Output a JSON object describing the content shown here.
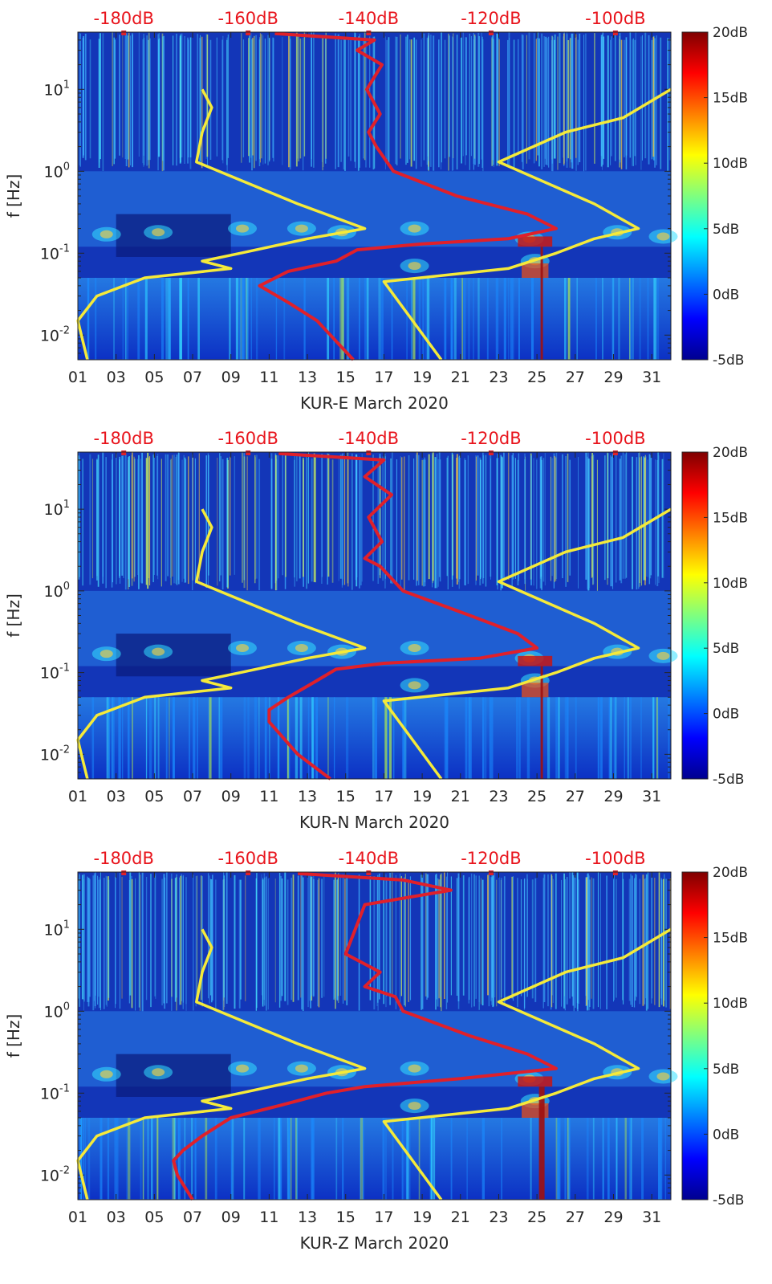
{
  "figure": {
    "colormap_stops": [
      "#00008f",
      "#0000ff",
      "#007fff",
      "#00ffff",
      "#7fff7f",
      "#ffff00",
      "#ff7f00",
      "#ff0000",
      "#7f0000"
    ],
    "background_color": "#1336b8",
    "psd_line_color": "#e0202a",
    "noise_model_color": "#f5ea3a"
  },
  "chart_data": [
    {
      "type": "heatmap",
      "panel": "KUR-E",
      "xlabel": "KUR-E March 2020",
      "ylabel": "f [Hz]",
      "x_tick_labels": [
        "01",
        "03",
        "05",
        "07",
        "09",
        "11",
        "13",
        "15",
        "17",
        "19",
        "21",
        "23",
        "25",
        "27",
        "29",
        "31"
      ],
      "xlim": [
        1,
        32
      ],
      "y_scale": "log",
      "ylim": [
        0.005,
        50
      ],
      "y_tick_labels": [
        {
          "base": "10",
          "exp": "1",
          "value": 10
        },
        {
          "base": "10",
          "exp": "0",
          "value": 1
        },
        {
          "base": "10",
          "exp": "-1",
          "value": 0.1
        },
        {
          "base": "10",
          "exp": "-2",
          "value": 0.01
        }
      ],
      "top_axis_labels": [
        "-180dB",
        "-160dB",
        "-140dB",
        "-120dB",
        "-100dB"
      ],
      "top_axis_positions_day": [
        3.4,
        9.9,
        16.2,
        22.6,
        29.1
      ],
      "colorbar": {
        "range": [
          -5,
          20
        ],
        "tick_labels": [
          "20dB",
          "15dB",
          "10dB",
          "5dB",
          "0dB",
          "-5dB"
        ],
        "tick_values": [
          20,
          15,
          10,
          5,
          0,
          -5
        ]
      },
      "psd_line": {
        "name": "Power spectral density (red)",
        "points": [
          [
            48,
            11.3
          ],
          [
            40,
            16.5
          ],
          [
            30,
            15.6
          ],
          [
            20,
            16.9
          ],
          [
            10,
            16.1
          ],
          [
            5,
            16.8
          ],
          [
            3,
            16.2
          ],
          [
            2,
            16.6
          ],
          [
            1,
            17.5
          ],
          [
            0.5,
            20.8
          ],
          [
            0.3,
            24.5
          ],
          [
            0.2,
            26.0
          ],
          [
            0.15,
            23.5
          ],
          [
            0.13,
            19.0
          ],
          [
            0.11,
            15.6
          ],
          [
            0.08,
            14.5
          ],
          [
            0.06,
            12.0
          ],
          [
            0.04,
            10.5
          ],
          [
            0.025,
            12.0
          ],
          [
            0.015,
            13.5
          ],
          [
            0.005,
            15.4
          ]
        ]
      },
      "noise_models": [
        {
          "name": "Low noise model (yellow)",
          "points": [
            [
              10,
              7.5
            ],
            [
              6,
              8.0
            ],
            [
              3,
              7.5
            ],
            [
              1.3,
              7.2
            ],
            [
              0.4,
              12.5
            ],
            [
              0.2,
              16.0
            ],
            [
              0.15,
              13.0
            ],
            [
              0.1,
              9.5
            ],
            [
              0.08,
              7.5
            ],
            [
              0.065,
              9.0
            ],
            [
              0.05,
              4.5
            ],
            [
              0.03,
              2.0
            ],
            [
              0.015,
              1.0
            ],
            [
              0.005,
              1.5
            ]
          ]
        },
        {
          "name": "High noise model (yellow)",
          "points": [
            [
              10,
              32.0
            ],
            [
              4.5,
              29.5
            ],
            [
              3,
              26.5
            ],
            [
              1.3,
              23.0
            ],
            [
              0.4,
              28.0
            ],
            [
              0.2,
              30.3
            ],
            [
              0.15,
              28.0
            ],
            [
              0.1,
              26.0
            ],
            [
              0.065,
              23.5
            ],
            [
              0.045,
              17.0
            ],
            [
              0.005,
              20.0
            ]
          ]
        }
      ]
    },
    {
      "type": "heatmap",
      "panel": "KUR-N",
      "xlabel": "KUR-N March 2020",
      "ylabel": "f [Hz]",
      "x_tick_labels": [
        "01",
        "03",
        "05",
        "07",
        "09",
        "11",
        "13",
        "15",
        "17",
        "19",
        "21",
        "23",
        "25",
        "27",
        "29",
        "31"
      ],
      "xlim": [
        1,
        32
      ],
      "y_scale": "log",
      "ylim": [
        0.005,
        50
      ],
      "y_tick_labels": [
        {
          "base": "10",
          "exp": "1",
          "value": 10
        },
        {
          "base": "10",
          "exp": "0",
          "value": 1
        },
        {
          "base": "10",
          "exp": "-1",
          "value": 0.1
        },
        {
          "base": "10",
          "exp": "-2",
          "value": 0.01
        }
      ],
      "top_axis_labels": [
        "-180dB",
        "-160dB",
        "-140dB",
        "-120dB",
        "-100dB"
      ],
      "top_axis_positions_day": [
        3.4,
        9.9,
        16.2,
        22.6,
        29.1
      ],
      "colorbar": {
        "range": [
          -5,
          20
        ],
        "tick_labels": [
          "20dB",
          "15dB",
          "10dB",
          "5dB",
          "0dB",
          "-5dB"
        ],
        "tick_values": [
          20,
          15,
          10,
          5,
          0,
          -5
        ]
      },
      "psd_line": {
        "name": "Power spectral density (red)",
        "points": [
          [
            48,
            11.5
          ],
          [
            40,
            17.0
          ],
          [
            25,
            16.0
          ],
          [
            15,
            17.4
          ],
          [
            8,
            16.2
          ],
          [
            4,
            16.9
          ],
          [
            2.5,
            16.0
          ],
          [
            2,
            16.8
          ],
          [
            1,
            18.0
          ],
          [
            0.5,
            21.5
          ],
          [
            0.3,
            24.0
          ],
          [
            0.2,
            25.0
          ],
          [
            0.15,
            22.0
          ],
          [
            0.13,
            17.0
          ],
          [
            0.11,
            14.5
          ],
          [
            0.08,
            13.5
          ],
          [
            0.05,
            12.0
          ],
          [
            0.035,
            11.0
          ],
          [
            0.025,
            11.0
          ],
          [
            0.01,
            12.5
          ],
          [
            0.005,
            14.2
          ]
        ]
      },
      "noise_models": [
        {
          "name": "Low noise model (yellow)",
          "points": [
            [
              10,
              7.5
            ],
            [
              6,
              8.0
            ],
            [
              3,
              7.5
            ],
            [
              1.3,
              7.2
            ],
            [
              0.4,
              12.5
            ],
            [
              0.2,
              16.0
            ],
            [
              0.15,
              13.0
            ],
            [
              0.1,
              9.5
            ],
            [
              0.08,
              7.5
            ],
            [
              0.065,
              9.0
            ],
            [
              0.05,
              4.5
            ],
            [
              0.03,
              2.0
            ],
            [
              0.015,
              1.0
            ],
            [
              0.005,
              1.5
            ]
          ]
        },
        {
          "name": "High noise model (yellow)",
          "points": [
            [
              10,
              32.0
            ],
            [
              4.5,
              29.5
            ],
            [
              3,
              26.5
            ],
            [
              1.3,
              23.0
            ],
            [
              0.4,
              28.0
            ],
            [
              0.2,
              30.3
            ],
            [
              0.15,
              28.0
            ],
            [
              0.1,
              26.0
            ],
            [
              0.065,
              23.5
            ],
            [
              0.045,
              17.0
            ],
            [
              0.005,
              20.0
            ]
          ]
        }
      ]
    },
    {
      "type": "heatmap",
      "panel": "KUR-Z",
      "xlabel": "KUR-Z March 2020",
      "ylabel": "f [Hz]",
      "x_tick_labels": [
        "01",
        "03",
        "05",
        "07",
        "09",
        "11",
        "13",
        "15",
        "17",
        "19",
        "21",
        "23",
        "25",
        "27",
        "29",
        "31"
      ],
      "xlim": [
        1,
        32
      ],
      "y_scale": "log",
      "ylim": [
        0.005,
        50
      ],
      "y_tick_labels": [
        {
          "base": "10",
          "exp": "1",
          "value": 10
        },
        {
          "base": "10",
          "exp": "0",
          "value": 1
        },
        {
          "base": "10",
          "exp": "-1",
          "value": 0.1
        },
        {
          "base": "10",
          "exp": "-2",
          "value": 0.01
        }
      ],
      "top_axis_labels": [
        "-180dB",
        "-160dB",
        "-140dB",
        "-120dB",
        "-100dB"
      ],
      "top_axis_positions_day": [
        3.4,
        9.9,
        16.2,
        22.6,
        29.1
      ],
      "colorbar": {
        "range": [
          -5,
          20
        ],
        "tick_labels": [
          "20dB",
          "15dB",
          "10dB",
          "5dB",
          "0dB",
          "-5dB"
        ],
        "tick_values": [
          20,
          15,
          10,
          5,
          0,
          -5
        ]
      },
      "psd_line": {
        "name": "Power spectral density (red)",
        "points": [
          [
            48,
            12.5
          ],
          [
            40,
            18.0
          ],
          [
            30,
            20.5
          ],
          [
            20,
            16.0
          ],
          [
            10,
            15.5
          ],
          [
            5,
            15.0
          ],
          [
            3,
            16.8
          ],
          [
            2,
            16.0
          ],
          [
            1.5,
            17.6
          ],
          [
            1,
            18.0
          ],
          [
            0.5,
            21.5
          ],
          [
            0.3,
            24.5
          ],
          [
            0.2,
            26.0
          ],
          [
            0.15,
            21.0
          ],
          [
            0.12,
            16.0
          ],
          [
            0.1,
            14.0
          ],
          [
            0.07,
            11.5
          ],
          [
            0.05,
            9.0
          ],
          [
            0.03,
            7.5
          ],
          [
            0.02,
            6.5
          ],
          [
            0.015,
            6.0
          ],
          [
            0.01,
            6.2
          ],
          [
            0.005,
            7.0
          ]
        ]
      },
      "noise_models": [
        {
          "name": "Low noise model (yellow)",
          "points": [
            [
              10,
              7.5
            ],
            [
              6,
              8.0
            ],
            [
              3,
              7.5
            ],
            [
              1.3,
              7.2
            ],
            [
              0.4,
              12.5
            ],
            [
              0.2,
              16.0
            ],
            [
              0.15,
              13.0
            ],
            [
              0.1,
              9.5
            ],
            [
              0.08,
              7.5
            ],
            [
              0.065,
              9.0
            ],
            [
              0.05,
              4.5
            ],
            [
              0.03,
              2.0
            ],
            [
              0.015,
              1.0
            ],
            [
              0.005,
              1.5
            ]
          ]
        },
        {
          "name": "High noise model (yellow)",
          "points": [
            [
              10,
              32.0
            ],
            [
              4.5,
              29.5
            ],
            [
              3,
              26.5
            ],
            [
              1.3,
              23.0
            ],
            [
              0.4,
              28.0
            ],
            [
              0.2,
              30.3
            ],
            [
              0.15,
              28.0
            ],
            [
              0.1,
              26.0
            ],
            [
              0.065,
              23.5
            ],
            [
              0.045,
              17.0
            ],
            [
              0.005,
              20.0
            ]
          ]
        }
      ]
    }
  ]
}
